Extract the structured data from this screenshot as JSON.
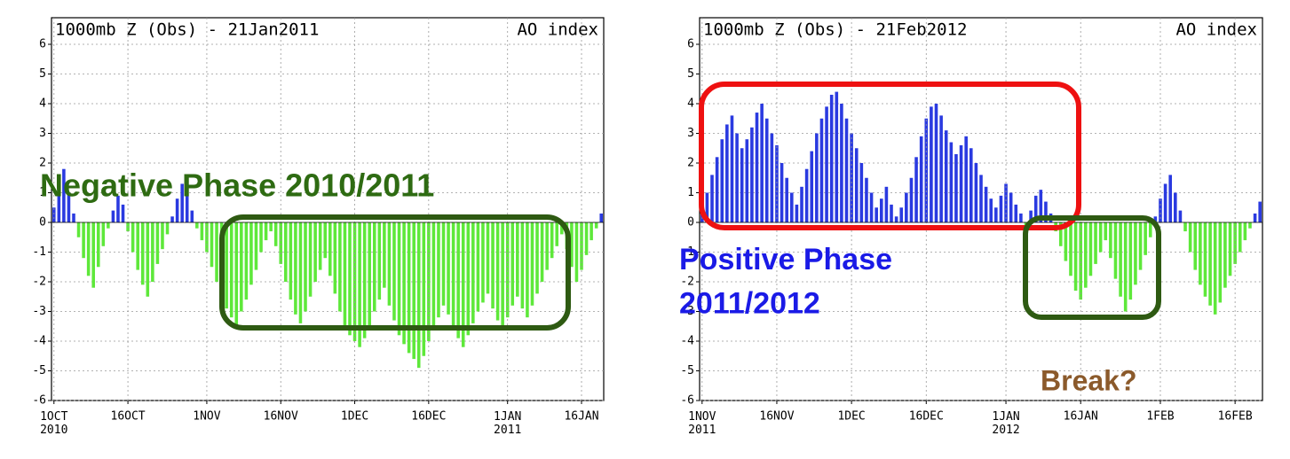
{
  "chart_data": [
    {
      "type": "bar",
      "title": "1000mb Z (Obs) - 21Jan2011",
      "subtitle": "AO index",
      "annotations": [
        "Negative Phase 2010/2011"
      ],
      "positive_color": "#2a3ae0",
      "negative_color": "#5ee83a",
      "ylim": [
        -6,
        6
      ],
      "yticks": [
        -6,
        -5,
        -4,
        -3,
        -2,
        -1,
        0,
        1,
        2,
        3,
        4,
        5,
        6
      ],
      "grid": true,
      "categories": [
        "1OCT 2010",
        null,
        null,
        null,
        null,
        null,
        null,
        null,
        null,
        null,
        null,
        null,
        null,
        null,
        null,
        "16OCT",
        null,
        null,
        null,
        null,
        null,
        null,
        null,
        null,
        null,
        null,
        null,
        null,
        null,
        null,
        null,
        "1NOV",
        null,
        null,
        null,
        null,
        null,
        null,
        null,
        null,
        null,
        null,
        null,
        null,
        null,
        null,
        "16NOV",
        null,
        null,
        null,
        null,
        null,
        null,
        null,
        null,
        null,
        null,
        null,
        null,
        null,
        null,
        "1DEC",
        null,
        null,
        null,
        null,
        null,
        null,
        null,
        null,
        null,
        null,
        null,
        null,
        null,
        null,
        "16DEC",
        null,
        null,
        null,
        null,
        null,
        null,
        null,
        null,
        null,
        null,
        null,
        null,
        null,
        null,
        null,
        "1JAN 2011",
        null,
        null,
        null,
        null,
        null,
        null,
        null,
        null,
        null,
        null,
        null,
        null,
        null,
        null,
        "16JAN",
        null,
        null,
        null,
        null
      ],
      "values": [
        0.5,
        1.2,
        1.8,
        1.0,
        0.3,
        -0.5,
        -1.2,
        -1.8,
        -2.2,
        -1.5,
        -0.8,
        -0.2,
        0.4,
        0.9,
        0.6,
        -0.3,
        -1.0,
        -1.6,
        -2.1,
        -2.5,
        -2.0,
        -1.4,
        -0.9,
        -0.4,
        0.2,
        0.8,
        1.3,
        1.0,
        0.4,
        -0.2,
        -0.6,
        -1.0,
        -1.5,
        -2.0,
        -2.4,
        -2.9,
        -3.2,
        -3.5,
        -3.0,
        -2.6,
        -2.1,
        -1.6,
        -1.0,
        -0.6,
        -0.3,
        -0.8,
        -1.4,
        -2.0,
        -2.6,
        -3.1,
        -3.4,
        -3.0,
        -2.5,
        -2.0,
        -1.6,
        -1.2,
        -1.8,
        -2.4,
        -3.0,
        -3.5,
        -3.8,
        -4.0,
        -4.2,
        -3.9,
        -3.5,
        -3.0,
        -2.6,
        -2.2,
        -2.8,
        -3.3,
        -3.8,
        -4.1,
        -4.4,
        -4.6,
        -4.9,
        -4.5,
        -4.0,
        -3.6,
        -3.2,
        -2.8,
        -3.1,
        -3.5,
        -3.9,
        -4.2,
        -3.8,
        -3.4,
        -3.0,
        -2.7,
        -2.4,
        -2.9,
        -3.3,
        -3.6,
        -3.2,
        -2.8,
        -2.5,
        -2.9,
        -3.2,
        -2.8,
        -2.4,
        -2.0,
        -1.6,
        -1.2,
        -0.8,
        -0.4,
        -0.9,
        -1.5,
        -2.0,
        -1.6,
        -1.1,
        -0.6,
        -0.2,
        0.3
      ]
    },
    {
      "type": "bar",
      "title": "1000mb Z (Obs) - 21Feb2012",
      "subtitle": "AO index",
      "annotations": [
        "Positive Phase 2011/2012",
        "Break?"
      ],
      "positive_color": "#2a3ae0",
      "negative_color": "#5ee83a",
      "ylim": [
        -6,
        6
      ],
      "yticks": [
        -6,
        -5,
        -4,
        -3,
        -2,
        -1,
        0,
        1,
        2,
        3,
        4,
        5,
        6
      ],
      "grid": true,
      "categories": [
        "1NOV 2011",
        null,
        null,
        null,
        null,
        null,
        null,
        null,
        null,
        null,
        null,
        null,
        null,
        null,
        null,
        "16NOV",
        null,
        null,
        null,
        null,
        null,
        null,
        null,
        null,
        null,
        null,
        null,
        null,
        null,
        null,
        "1DEC",
        null,
        null,
        null,
        null,
        null,
        null,
        null,
        null,
        null,
        null,
        null,
        null,
        null,
        null,
        "16DEC",
        null,
        null,
        null,
        null,
        null,
        null,
        null,
        null,
        null,
        null,
        null,
        null,
        null,
        null,
        null,
        "1JAN 2012",
        null,
        null,
        null,
        null,
        null,
        null,
        null,
        null,
        null,
        null,
        null,
        null,
        null,
        null,
        "16JAN",
        null,
        null,
        null,
        null,
        null,
        null,
        null,
        null,
        null,
        null,
        null,
        null,
        null,
        null,
        null,
        "1FEB",
        null,
        null,
        null,
        null,
        null,
        null,
        null,
        null,
        null,
        null,
        null,
        null,
        null,
        null,
        "16FEB",
        null,
        null,
        null,
        null,
        null
      ],
      "values": [
        0.5,
        1.0,
        1.6,
        2.2,
        2.8,
        3.3,
        3.6,
        3.0,
        2.5,
        2.8,
        3.2,
        3.7,
        4.0,
        3.5,
        3.0,
        2.6,
        2.0,
        1.5,
        1.0,
        0.6,
        1.2,
        1.8,
        2.4,
        3.0,
        3.5,
        3.9,
        4.3,
        4.4,
        4.0,
        3.5,
        3.0,
        2.5,
        2.0,
        1.5,
        1.0,
        0.5,
        0.8,
        1.2,
        0.6,
        0.2,
        0.5,
        1.0,
        1.5,
        2.2,
        2.9,
        3.5,
        3.9,
        4.0,
        3.6,
        3.1,
        2.7,
        2.3,
        2.6,
        2.9,
        2.5,
        2.0,
        1.6,
        1.2,
        0.8,
        0.5,
        0.9,
        1.3,
        1.0,
        0.6,
        0.3,
        -0.2,
        0.4,
        0.9,
        1.1,
        0.7,
        0.3,
        -0.3,
        -0.8,
        -1.3,
        -1.8,
        -2.3,
        -2.6,
        -2.2,
        -1.8,
        -1.4,
        -1.0,
        -0.6,
        -1.2,
        -1.9,
        -2.5,
        -3.0,
        -2.6,
        -2.1,
        -1.6,
        -1.1,
        -0.5,
        0.2,
        0.8,
        1.3,
        1.6,
        1.0,
        0.4,
        -0.3,
        -1.0,
        -1.6,
        -2.1,
        -2.5,
        -2.8,
        -3.1,
        -2.7,
        -2.2,
        -1.8,
        -1.4,
        -1.0,
        -0.6,
        -0.2,
        0.3,
        0.7
      ]
    }
  ]
}
